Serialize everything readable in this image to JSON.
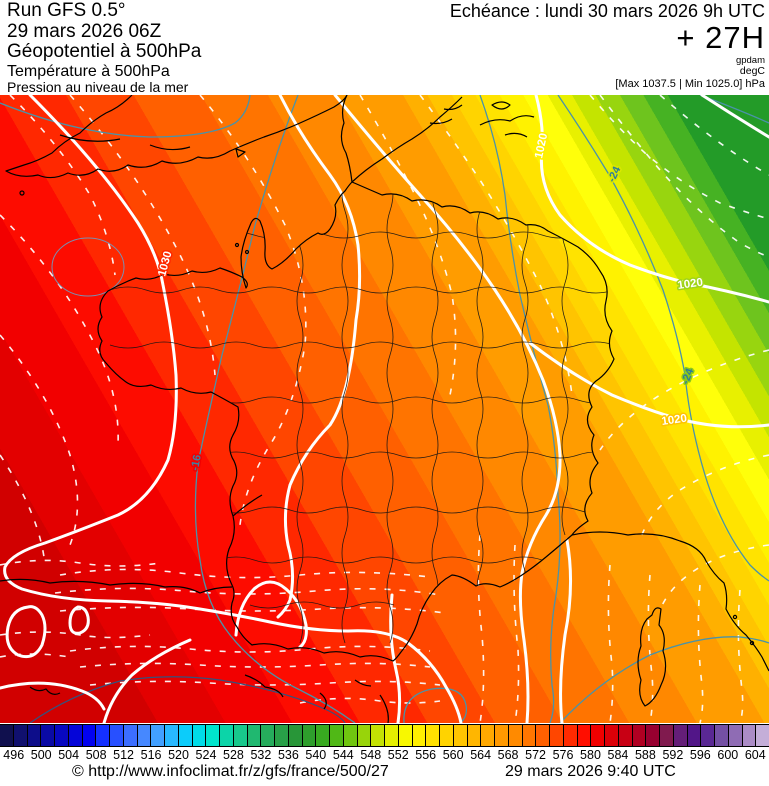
{
  "header": {
    "run": "Run GFS 0.5°",
    "run_date": "29 mars 2026 06Z",
    "field1": "Géopotentiel à 500hPa",
    "field2": "Température à 500hPa",
    "field3": "Pression au niveau de la mer",
    "echeance": "Echéance : lundi 30 mars 2026 9h UTC",
    "offset": "+ 27H",
    "unit_geo": "gpdam",
    "unit_temp": "degC",
    "pressure_range": "[Max 1037.5 | Min 1025.0] hPa"
  },
  "map": {
    "labels": [
      {
        "text": "1030"
      },
      {
        "text": "1020"
      },
      {
        "text": "1020"
      },
      {
        "text": "1020"
      },
      {
        "text": "-16"
      },
      {
        "text": "-24"
      },
      {
        "text": "-24"
      }
    ],
    "band_colors": [
      "#d10000",
      "#e30000",
      "#f20000",
      "#fd0c00",
      "#ff2800",
      "#ff4600",
      "#ff6000",
      "#ff7400",
      "#ff8800",
      "#ff9c00",
      "#ffb000",
      "#ffc400",
      "#ffd400",
      "#ffe300",
      "#fff200",
      "#ffff0a",
      "#e8f000",
      "#c4e400",
      "#98d50f",
      "#6ec41e",
      "#46b223",
      "#239b28"
    ],
    "band_offsets": [
      0,
      0.072,
      0.144,
      0.215,
      0.287,
      0.359,
      0.431,
      0.503,
      0.574,
      0.646,
      0.718,
      0.744,
      0.77,
      0.795,
      0.821,
      0.846,
      0.872,
      0.898,
      0.923,
      0.949,
      0.974,
      1.0
    ],
    "band_values": [
      580,
      578,
      576,
      574,
      572,
      570,
      568,
      566,
      564,
      562,
      560,
      558,
      556,
      554,
      552,
      550,
      548,
      546,
      544,
      542,
      540,
      538
    ]
  },
  "colorbar": {
    "unit": "gpdam",
    "ticks": [
      "496",
      "500",
      "504",
      "508",
      "512",
      "516",
      "520",
      "524",
      "528",
      "532",
      "536",
      "540",
      "544",
      "548",
      "552",
      "556",
      "560",
      "564",
      "568",
      "572",
      "576",
      "580",
      "584",
      "588",
      "592",
      "596",
      "600",
      "604"
    ],
    "cells": [
      "#10104e",
      "#10106e",
      "#0d0d8a",
      "#0a0aa5",
      "#0808c0",
      "#0505d8",
      "#0202f0",
      "#1430ff",
      "#2850ff",
      "#3c6eff",
      "#4688ff",
      "#42a0ff",
      "#28b8ff",
      "#0cccfa",
      "#00dce8",
      "#00e4cc",
      "#0cd4a8",
      "#18c88c",
      "#20b870",
      "#26ac5c",
      "#28a048",
      "#289638",
      "#2e9e2c",
      "#38aa20",
      "#50b816",
      "#70c610",
      "#98d40a",
      "#c4e203",
      "#e4ef00",
      "#f8f800",
      "#ffef00",
      "#ffe100",
      "#ffd300",
      "#ffc500",
      "#ffb600",
      "#ffa800",
      "#ff9900",
      "#ff8a00",
      "#ff7600",
      "#ff6000",
      "#ff4600",
      "#ff2a00",
      "#ff0e00",
      "#f00000",
      "#dc0008",
      "#c80014",
      "#b00022",
      "#980030",
      "#801a4e",
      "#641e78",
      "#521688",
      "#5a2894",
      "#7450a4",
      "#8f6cb4",
      "#ab8cc6",
      "#c4aed8"
    ]
  },
  "footer": {
    "copyright": "© http://www.infoclimat.fr/z/gfs/france/500/27",
    "datetime": "29 mars 2026  9:40 UTC"
  }
}
